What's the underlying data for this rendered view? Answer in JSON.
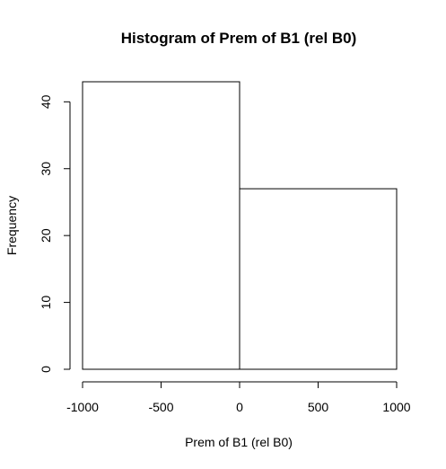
{
  "chart_data": {
    "type": "bar",
    "subtype": "histogram",
    "title": "Histogram of Prem of B1 (rel B0)",
    "xlabel": "Prem of B1 (rel B0)",
    "ylabel": "Frequency",
    "bins": [
      {
        "x0": -1000,
        "x1": 0,
        "count": 43
      },
      {
        "x0": 0,
        "x1": 1000,
        "count": 27
      }
    ],
    "xlim": [
      -1000,
      1000
    ],
    "ylim": [
      0,
      43
    ],
    "xticks": [
      -1000,
      -500,
      0,
      500,
      1000
    ],
    "yticks": [
      0,
      10,
      20,
      30,
      40
    ],
    "grid": false,
    "bar_fill": "#ffffff",
    "bar_stroke": "#000000"
  }
}
